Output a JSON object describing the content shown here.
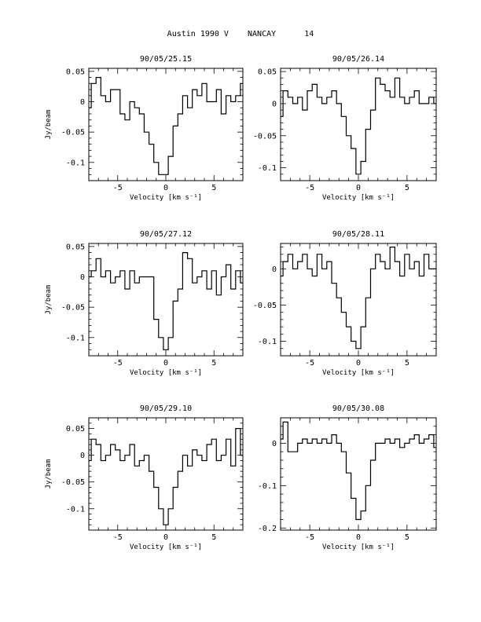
{
  "page": {
    "title": "Austin 1990 V    NANCAY      14"
  },
  "axes_common": {
    "xlabel": "Velocity [km s⁻¹]",
    "ylabel": "Jy/beam",
    "xlim": [
      -8,
      8
    ],
    "xticks": [
      -5,
      0,
      5
    ]
  },
  "chart_data": [
    {
      "type": "line",
      "title": "90/05/25.15",
      "ylim": [
        -0.13,
        0.055
      ],
      "yticks": [
        0.05,
        0,
        -0.05,
        -0.1
      ],
      "ytick_labels": [
        "0.05",
        "0",
        "-0.05",
        "-0.1"
      ],
      "x": [
        -8,
        -7.5,
        -7,
        -6.5,
        -6,
        -5.5,
        -5,
        -4.5,
        -4,
        -3.5,
        -3,
        -2.5,
        -2,
        -1.5,
        -1,
        -0.5,
        0,
        0.5,
        1,
        1.5,
        2,
        2.5,
        3,
        3.5,
        4,
        4.5,
        5,
        5.5,
        6,
        6.5,
        7,
        7.5,
        8
      ],
      "y": [
        -0.01,
        0.03,
        0.04,
        0.01,
        0.0,
        0.02,
        0.02,
        -0.02,
        -0.03,
        0.0,
        -0.01,
        -0.02,
        -0.05,
        -0.07,
        -0.1,
        -0.12,
        -0.12,
        -0.09,
        -0.04,
        -0.02,
        0.01,
        -0.01,
        0.02,
        0.01,
        0.03,
        0.0,
        0.0,
        0.02,
        -0.02,
        0.01,
        0.0,
        0.01,
        0.03
      ]
    },
    {
      "type": "line",
      "title": "90/05/26.14",
      "ylim": [
        -0.12,
        0.055
      ],
      "yticks": [
        0.05,
        0,
        -0.05,
        -0.1
      ],
      "ytick_labels": [
        "0.05",
        "0",
        "-0.05",
        "-0.1"
      ],
      "x": [
        -8,
        -7.5,
        -7,
        -6.5,
        -6,
        -5.5,
        -5,
        -4.5,
        -4,
        -3.5,
        -3,
        -2.5,
        -2,
        -1.5,
        -1,
        -0.5,
        0,
        0.5,
        1,
        1.5,
        2,
        2.5,
        3,
        3.5,
        4,
        4.5,
        5,
        5.5,
        6,
        6.5,
        7,
        7.5,
        8
      ],
      "y": [
        -0.02,
        0.02,
        0.01,
        0.0,
        0.01,
        -0.01,
        0.02,
        0.03,
        0.01,
        0.0,
        0.01,
        0.02,
        0.0,
        -0.02,
        -0.05,
        -0.07,
        -0.11,
        -0.09,
        -0.04,
        -0.01,
        0.04,
        0.03,
        0.02,
        0.01,
        0.04,
        0.01,
        0.0,
        0.01,
        0.02,
        0.0,
        0.0,
        0.01,
        0.0
      ]
    },
    {
      "type": "line",
      "title": "90/05/27.12",
      "ylim": [
        -0.13,
        0.055
      ],
      "yticks": [
        0.05,
        0,
        -0.05,
        -0.1
      ],
      "ytick_labels": [
        "0.05",
        "0",
        "-0.05",
        "-0.1"
      ],
      "x": [
        -8,
        -7.5,
        -7,
        -6.5,
        -6,
        -5.5,
        -5,
        -4.5,
        -4,
        -3.5,
        -3,
        -2.5,
        -2,
        -1.5,
        -1,
        -0.5,
        0,
        0.5,
        1,
        1.5,
        2,
        2.5,
        3,
        3.5,
        4,
        4.5,
        5,
        5.5,
        6,
        6.5,
        7,
        7.5,
        8
      ],
      "y": [
        0.0,
        0.01,
        0.03,
        0.0,
        0.01,
        -0.01,
        0.0,
        0.01,
        -0.02,
        0.01,
        -0.01,
        0.0,
        0.0,
        0.0,
        -0.07,
        -0.1,
        -0.12,
        -0.1,
        -0.04,
        -0.02,
        0.04,
        0.03,
        -0.01,
        0.0,
        0.01,
        -0.02,
        0.01,
        -0.03,
        0.0,
        0.02,
        -0.02,
        0.01,
        -0.01
      ]
    },
    {
      "type": "line",
      "title": "90/05/28.11",
      "ylim": [
        -0.12,
        0.035
      ],
      "yticks": [
        0,
        -0.05,
        -0.1
      ],
      "ytick_labels": [
        "0",
        "-0.05",
        "-0.1"
      ],
      "x": [
        -8,
        -7.5,
        -7,
        -6.5,
        -6,
        -5.5,
        -5,
        -4.5,
        -4,
        -3.5,
        -3,
        -2.5,
        -2,
        -1.5,
        -1,
        -0.5,
        0,
        0.5,
        1,
        1.5,
        2,
        2.5,
        3,
        3.5,
        4,
        4.5,
        5,
        5.5,
        6,
        6.5,
        7,
        7.5,
        8
      ],
      "y": [
        -0.01,
        0.01,
        0.02,
        0.0,
        0.01,
        0.02,
        0.0,
        -0.01,
        0.02,
        0.0,
        0.01,
        -0.02,
        -0.04,
        -0.06,
        -0.08,
        -0.1,
        -0.11,
        -0.08,
        -0.04,
        0.0,
        0.02,
        0.01,
        0.0,
        0.03,
        0.01,
        -0.01,
        0.02,
        0.0,
        0.01,
        -0.01,
        0.02,
        0.0,
        0.0
      ]
    },
    {
      "type": "line",
      "title": "90/05/29.10",
      "ylim": [
        -0.14,
        0.07
      ],
      "yticks": [
        0.05,
        0,
        -0.05,
        -0.1
      ],
      "ytick_labels": [
        "0.05",
        "0",
        "-0.05",
        "-0.1"
      ],
      "x": [
        -8,
        -7.5,
        -7,
        -6.5,
        -6,
        -5.5,
        -5,
        -4.5,
        -4,
        -3.5,
        -3,
        -2.5,
        -2,
        -1.5,
        -1,
        -0.5,
        0,
        0.5,
        1,
        1.5,
        2,
        2.5,
        3,
        3.5,
        4,
        4.5,
        5,
        5.5,
        6,
        6.5,
        7,
        7.5,
        8
      ],
      "y": [
        -0.01,
        0.03,
        0.02,
        -0.01,
        0.0,
        0.02,
        0.01,
        -0.01,
        0.0,
        0.02,
        -0.02,
        -0.01,
        0.0,
        -0.03,
        -0.06,
        -0.1,
        -0.13,
        -0.1,
        -0.06,
        -0.03,
        0.0,
        -0.02,
        0.01,
        0.0,
        -0.01,
        0.02,
        0.03,
        -0.01,
        0.0,
        0.03,
        -0.02,
        0.05,
        0.0
      ]
    },
    {
      "type": "line",
      "title": "90/05/30.08",
      "ylim": [
        -0.205,
        0.06
      ],
      "yticks": [
        0,
        -0.1,
        -0.2
      ],
      "ytick_labels": [
        "0",
        "-0.1",
        "-0.2"
      ],
      "x": [
        -8,
        -7.5,
        -7,
        -6.5,
        -6,
        -5.5,
        -5,
        -4.5,
        -4,
        -3.5,
        -3,
        -2.5,
        -2,
        -1.5,
        -1,
        -0.5,
        0,
        0.5,
        1,
        1.5,
        2,
        2.5,
        3,
        3.5,
        4,
        4.5,
        5,
        5.5,
        6,
        6.5,
        7,
        7.5,
        8
      ],
      "y": [
        0.01,
        0.05,
        -0.02,
        -0.02,
        0.0,
        0.01,
        0.0,
        0.01,
        0.0,
        0.01,
        0.0,
        0.02,
        0.0,
        -0.02,
        -0.07,
        -0.13,
        -0.18,
        -0.16,
        -0.1,
        -0.04,
        0.0,
        0.0,
        0.01,
        0.0,
        0.01,
        -0.01,
        0.0,
        0.01,
        0.02,
        0.0,
        0.01,
        0.02,
        -0.01
      ]
    }
  ]
}
